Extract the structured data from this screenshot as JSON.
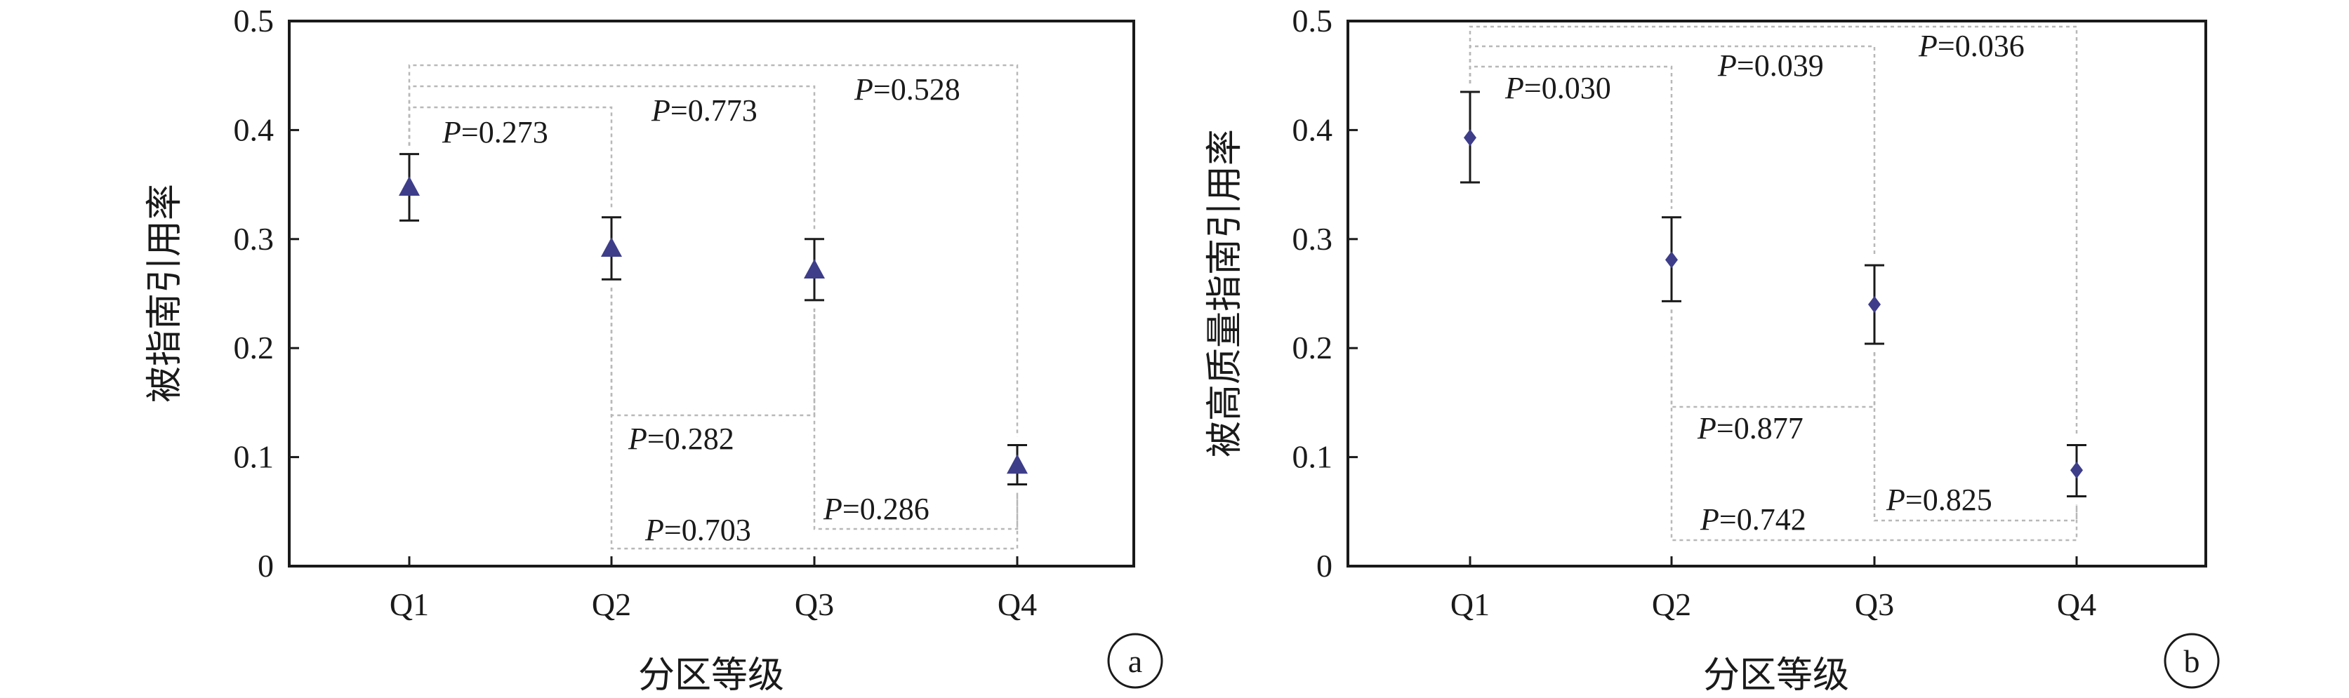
{
  "colors": {
    "marker": "#3d3d8a",
    "axis": "#1a1a1a",
    "bracket": "#b8b8b8"
  },
  "chart_data": [
    {
      "panel_label": "a",
      "type": "scatter",
      "marker": "triangle",
      "categories": [
        "Q1",
        "Q2",
        "Q3",
        "Q4"
      ],
      "values": [
        0.348,
        0.292,
        0.272,
        0.093
      ],
      "error_low": [
        0.317,
        0.263,
        0.244,
        0.075
      ],
      "error_high": [
        0.378,
        0.32,
        0.3,
        0.111
      ],
      "xlabel": "分区等级",
      "ylabel": "被指南引用率",
      "ylim": [
        0,
        0.5
      ],
      "yticks": [
        "0",
        "0.1",
        "0.2",
        "0.3",
        "0.4",
        "0.5"
      ],
      "comparisons": [
        {
          "pair": [
            "Q1",
            "Q2"
          ],
          "p": "P=0.273"
        },
        {
          "pair": [
            "Q1",
            "Q3"
          ],
          "p": "P=0.773"
        },
        {
          "pair": [
            "Q1",
            "Q4"
          ],
          "p": "P=0.528"
        },
        {
          "pair": [
            "Q2",
            "Q3"
          ],
          "p": "P=0.282"
        },
        {
          "pair": [
            "Q2",
            "Q4"
          ],
          "p": "P=0.703"
        },
        {
          "pair": [
            "Q3",
            "Q4"
          ],
          "p": "P=0.286"
        }
      ]
    },
    {
      "panel_label": "b",
      "type": "scatter",
      "marker": "diamond",
      "categories": [
        "Q1",
        "Q2",
        "Q3",
        "Q4"
      ],
      "values": [
        0.393,
        0.281,
        0.24,
        0.088
      ],
      "error_low": [
        0.352,
        0.243,
        0.204,
        0.064
      ],
      "error_high": [
        0.435,
        0.32,
        0.276,
        0.111
      ],
      "xlabel": "分区等级",
      "ylabel": "被高质量指南引用率",
      "ylim": [
        0,
        0.5
      ],
      "yticks": [
        "0",
        "0.1",
        "0.2",
        "0.3",
        "0.4",
        "0.5"
      ],
      "comparisons": [
        {
          "pair": [
            "Q1",
            "Q2"
          ],
          "p": "P=0.030"
        },
        {
          "pair": [
            "Q1",
            "Q3"
          ],
          "p": "P=0.039"
        },
        {
          "pair": [
            "Q1",
            "Q4"
          ],
          "p": "P=0.036"
        },
        {
          "pair": [
            "Q2",
            "Q3"
          ],
          "p": "P=0.877"
        },
        {
          "pair": [
            "Q2",
            "Q4"
          ],
          "p": "P=0.742"
        },
        {
          "pair": [
            "Q3",
            "Q4"
          ],
          "p": "P=0.825"
        }
      ]
    }
  ]
}
